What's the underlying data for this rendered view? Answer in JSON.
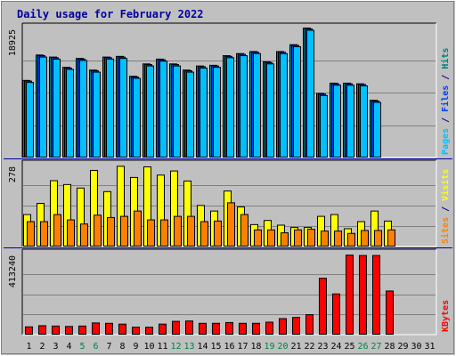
{
  "chart_data": {
    "type": "bar",
    "title": "Daily usage for February 2022",
    "days": [
      "1",
      "2",
      "3",
      "4",
      "5",
      "6",
      "7",
      "8",
      "9",
      "10",
      "11",
      "12",
      "13",
      "14",
      "15",
      "16",
      "17",
      "18",
      "19",
      "20",
      "21",
      "22",
      "23",
      "24",
      "25",
      "26",
      "27",
      "28",
      "29",
      "30",
      "31"
    ],
    "weekend_days": [
      "5",
      "6",
      "12",
      "13",
      "19",
      "20",
      "26",
      "27"
    ],
    "colors": {
      "background": "#c0c0c0",
      "pages": "#00c0ff",
      "files": "#0040ff",
      "hits": "#008080",
      "visits": "#ffff00",
      "sites": "#ff8000",
      "kbytes": "#ff0000",
      "day_label": "#000000",
      "weekend_label": "#008040",
      "separator": "#0000a0",
      "title": "#0000a0"
    },
    "panels": [
      {
        "scale_label": "18925",
        "ymax": 18925,
        "side_labels": [
          {
            "text": "Pages",
            "color": "#00c0ff"
          },
          {
            "text": " / ",
            "color": "#0000a0"
          },
          {
            "text": "Files",
            "color": "#0040ff"
          },
          {
            "text": " / ",
            "color": "#0000a0"
          },
          {
            "text": "Hits",
            "color": "#008080"
          }
        ],
        "series": [
          {
            "name": "Hits",
            "color": "#008080",
            "values": [
              11300,
              15000,
              14700,
              13200,
              14500,
              12800,
              14700,
              14800,
              11900,
              13700,
              14400,
              13700,
              12800,
              13400,
              13500,
              14900,
              15200,
              15500,
              14000,
              15500,
              16500,
              18925,
              9400,
              10900,
              10900,
              10800,
              8400,
              null,
              null,
              null,
              null
            ]
          },
          {
            "name": "Files",
            "color": "#0040ff",
            "values": [
              11200,
              14900,
              14600,
              13100,
              14400,
              12700,
              14600,
              14700,
              11800,
              13600,
              14300,
              13600,
              12700,
              13300,
              13400,
              14800,
              15100,
              15400,
              13900,
              15400,
              16400,
              18800,
              9300,
              10800,
              10800,
              10700,
              8300,
              null,
              null,
              null,
              null
            ]
          },
          {
            "name": "Pages",
            "color": "#00c0ff",
            "values": [
              11000,
              14700,
              14400,
              12900,
              14200,
              12500,
              14400,
              14500,
              11600,
              13400,
              14100,
              13400,
              12500,
              13100,
              13200,
              14600,
              14900,
              15200,
              13700,
              15200,
              16200,
              18600,
              9100,
              10600,
              10600,
              10500,
              8100,
              null,
              null,
              null,
              null
            ]
          }
        ]
      },
      {
        "scale_label": "278",
        "ymax": 278,
        "side_labels": [
          {
            "text": "Sites",
            "color": "#ff8000"
          },
          {
            "text": " / ",
            "color": "#0000a0"
          },
          {
            "text": "Visits",
            "color": "#ffff00"
          }
        ],
        "series": [
          {
            "name": "Visits",
            "color": "#ffff00",
            "values": [
              110,
              148,
              225,
              212,
              200,
              260,
              188,
              274,
              236,
              272,
              244,
              258,
              224,
              141,
              122,
              190,
              136,
              76,
              90,
              74,
              66,
              66,
              104,
              110,
              62,
              86,
              122,
              88,
              null,
              null,
              null
            ]
          },
          {
            "name": "Sites",
            "color": "#ff8000",
            "values": [
              86,
              86,
              110,
              92,
              78,
              108,
              100,
              104,
              122,
              92,
              92,
              104,
              104,
              86,
              88,
              150,
              110,
              58,
              58,
              48,
              58,
              60,
              54,
              54,
              46,
              56,
              56,
              58,
              null,
              null,
              null
            ]
          }
        ]
      },
      {
        "scale_label": "413240",
        "ymax": 413240,
        "side_labels": [
          {
            "text": "KBytes",
            "color": "#ff0000"
          }
        ],
        "series": [
          {
            "name": "KBytes",
            "color": "#ff0000",
            "values": [
              42000,
              48000,
              46000,
              44000,
              46000,
              62000,
              60000,
              56000,
              40000,
              40000,
              56000,
              70000,
              72000,
              60000,
              60000,
              64000,
              60000,
              60000,
              66000,
              84000,
              90000,
              104000,
              290000,
              210000,
              408000,
              406000,
              406000,
              225000,
              null,
              null,
              null
            ]
          }
        ]
      }
    ]
  }
}
